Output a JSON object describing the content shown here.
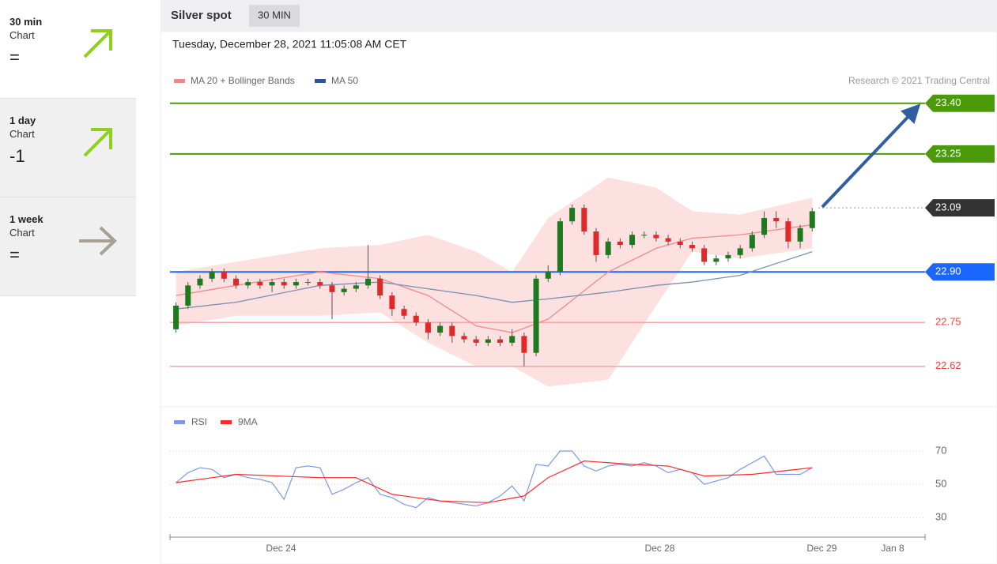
{
  "header": {
    "title": "Silver spot",
    "timeframe": "30 MIN",
    "timestamp": "Tuesday, December 28, 2021 11:05:08 AM CET",
    "credit": "Research © 2021 Trading Central"
  },
  "sidebar": [
    {
      "period": "30 min",
      "label": "Chart",
      "signal": "=",
      "arrow": "up"
    },
    {
      "period": "1 day",
      "label": "Chart",
      "signal": "-1",
      "arrow": "up"
    },
    {
      "period": "1 week",
      "label": "Chart",
      "signal": "=",
      "arrow": "right"
    }
  ],
  "chart_data": [
    {
      "type": "candlestick",
      "up_color": "#1e7a1e",
      "down_color": "#e02a2a",
      "xlim": [
        -0.5,
        62.4
      ],
      "ylim": [
        22.5,
        23.437
      ],
      "x": [
        0,
        1,
        2,
        3,
        4,
        5,
        6,
        7,
        8,
        9,
        10,
        11,
        12,
        13,
        14,
        15,
        16,
        17,
        18,
        19,
        20,
        21,
        22,
        23,
        24,
        25,
        26,
        27,
        28,
        29,
        30,
        31,
        32,
        33,
        34,
        35,
        36,
        37,
        38,
        39,
        40,
        41,
        42,
        43,
        44,
        45,
        46,
        47,
        48,
        49,
        50,
        51,
        52,
        53
      ],
      "open": [
        22.73,
        22.8,
        22.86,
        22.88,
        22.9,
        22.88,
        22.86,
        22.87,
        22.86,
        22.87,
        22.86,
        22.87,
        22.87,
        22.86,
        22.84,
        22.85,
        22.86,
        22.88,
        22.83,
        22.79,
        22.77,
        22.75,
        22.72,
        22.74,
        22.71,
        22.7,
        22.69,
        22.7,
        22.69,
        22.71,
        22.66,
        22.88,
        22.9,
        23.05,
        23.09,
        23.02,
        22.95,
        22.99,
        22.98,
        23.01,
        23.01,
        23.0,
        22.99,
        22.98,
        22.97,
        22.93,
        22.94,
        22.95,
        22.97,
        23.01,
        23.06,
        23.05,
        22.99,
        23.03
      ],
      "high": [
        22.81,
        22.87,
        22.89,
        22.91,
        22.91,
        22.89,
        22.88,
        22.88,
        22.88,
        22.88,
        22.88,
        22.88,
        22.88,
        22.87,
        22.86,
        22.87,
        22.98,
        22.89,
        22.84,
        22.8,
        22.78,
        22.76,
        22.75,
        22.75,
        22.72,
        22.71,
        22.71,
        22.71,
        22.73,
        22.72,
        22.89,
        22.92,
        23.06,
        23.1,
        23.1,
        23.03,
        23.0,
        23.0,
        23.02,
        23.02,
        23.02,
        23.01,
        23.0,
        22.99,
        22.98,
        22.95,
        22.96,
        22.98,
        23.02,
        23.08,
        23.08,
        23.06,
        23.04,
        23.09
      ],
      "low": [
        22.72,
        22.79,
        22.85,
        22.87,
        22.87,
        22.85,
        22.85,
        22.85,
        22.84,
        22.85,
        22.85,
        22.86,
        22.85,
        22.76,
        22.83,
        22.84,
        22.85,
        22.82,
        22.77,
        22.76,
        22.74,
        22.7,
        22.71,
        22.69,
        22.69,
        22.68,
        22.68,
        22.68,
        22.68,
        22.62,
        22.65,
        22.87,
        22.89,
        23.04,
        23.01,
        22.93,
        22.94,
        22.97,
        22.97,
        23.0,
        22.99,
        22.98,
        22.97,
        22.96,
        22.92,
        22.92,
        22.93,
        22.94,
        22.96,
        23.0,
        23.03,
        22.97,
        22.97,
        23.02
      ],
      "close": [
        22.8,
        22.86,
        22.88,
        22.9,
        22.88,
        22.86,
        22.87,
        22.86,
        22.87,
        22.86,
        22.87,
        22.87,
        22.86,
        22.84,
        22.85,
        22.86,
        22.88,
        22.83,
        22.79,
        22.77,
        22.75,
        22.72,
        22.74,
        22.71,
        22.7,
        22.69,
        22.7,
        22.69,
        22.71,
        22.66,
        22.88,
        22.9,
        23.05,
        23.09,
        23.02,
        22.95,
        22.99,
        22.98,
        23.01,
        23.01,
        23.0,
        22.99,
        22.98,
        22.97,
        22.93,
        22.94,
        22.95,
        22.97,
        23.01,
        23.06,
        23.05,
        22.99,
        23.03,
        23.08
      ],
      "series": [
        {
          "name": "MA 20 + Bollinger Bands",
          "color": "#f08a8a",
          "band_color": "#fde0e0",
          "x": [
            0,
            5,
            12,
            17,
            21,
            25,
            28,
            31,
            36,
            40,
            43,
            47,
            53
          ],
          "values": [
            22.83,
            22.86,
            22.9,
            22.88,
            22.83,
            22.74,
            22.72,
            22.76,
            22.9,
            22.97,
            23.0,
            23.01,
            23.04
          ],
          "upper": [
            22.9,
            22.93,
            22.97,
            22.98,
            23.01,
            22.96,
            22.9,
            23.06,
            23.18,
            23.15,
            23.08,
            23.07,
            23.12
          ],
          "lower": [
            22.74,
            22.77,
            22.77,
            22.78,
            22.69,
            22.62,
            22.62,
            22.56,
            22.58,
            22.8,
            22.96,
            22.94,
            22.97
          ]
        },
        {
          "name": "MA 50",
          "color": "#7a8fb0",
          "legend_color": "#2f5597",
          "x": [
            0,
            5,
            12,
            17,
            21,
            25,
            28,
            31,
            36,
            40,
            43,
            47,
            53
          ],
          "values": [
            22.79,
            22.81,
            22.86,
            22.87,
            22.85,
            22.83,
            22.81,
            22.82,
            22.84,
            22.86,
            22.87,
            22.89,
            22.96
          ]
        }
      ],
      "levels": [
        {
          "value": 23.4,
          "label": "23.40",
          "color": "#4a9a0a",
          "line": "solid",
          "tag": true
        },
        {
          "value": 23.25,
          "label": "23.25",
          "color": "#4a9a0a",
          "line": "solid",
          "tag": true
        },
        {
          "value": 23.09,
          "label": "23.09",
          "color": "#333333",
          "line": "dotted",
          "tag": true
        },
        {
          "value": 22.9,
          "label": "22.90",
          "color": "#1a66ff",
          "line": "solid",
          "tag": true
        },
        {
          "value": 22.75,
          "label": "22.75",
          "color": "#f4a6a6",
          "line": "solid",
          "tag": false,
          "text_color": "#ff3b3b"
        },
        {
          "value": 22.62,
          "label": "22.62",
          "color": "#f4a6a6",
          "line": "solid",
          "tag": false,
          "text_color": "#ff3b3b"
        }
      ]
    },
    {
      "type": "line",
      "xlim": [
        -0.5,
        62.4
      ],
      "ylim": [
        23,
        77.6
      ],
      "yticks": [
        30,
        50,
        70
      ],
      "grid": true,
      "xticks": [
        {
          "value": 8.75,
          "label": "Dec 24"
        },
        {
          "value": 40.3,
          "label": "Dec 28"
        },
        {
          "value": 53.8,
          "label": "Dec 29"
        },
        {
          "value": 59.7,
          "label": "Jan 8"
        }
      ],
      "series": [
        {
          "name": "RSI",
          "color": "#7b98e8",
          "x": [
            0,
            1,
            2,
            3,
            4,
            5,
            6,
            7,
            8,
            9,
            10,
            11,
            12,
            13,
            14,
            15,
            16,
            17,
            18,
            19,
            20,
            21,
            22,
            23,
            24,
            25,
            26,
            27,
            28,
            29,
            30,
            31,
            32,
            33,
            34,
            35,
            36,
            37,
            38,
            39,
            40,
            41,
            42,
            43,
            44,
            45,
            46,
            47,
            48,
            49,
            50,
            51,
            52,
            53
          ],
          "values": [
            51,
            57,
            60,
            59,
            54,
            56,
            54,
            53,
            51,
            41,
            60,
            61,
            60,
            44,
            47,
            51,
            54,
            44,
            42,
            38,
            36,
            42,
            40,
            39,
            38,
            37,
            39,
            43,
            49,
            40,
            62,
            61,
            70,
            70,
            61,
            58,
            61,
            62,
            61,
            63,
            61,
            57,
            59,
            57,
            50,
            52,
            54,
            59,
            63,
            67,
            56,
            56,
            56,
            60
          ]
        },
        {
          "name": "9MA",
          "color": "#ff2a2a",
          "x": [
            0,
            5,
            12,
            15,
            18,
            22,
            26,
            29,
            31,
            34,
            38,
            41,
            44,
            48,
            53
          ],
          "values": [
            51,
            56,
            54,
            54,
            44,
            40,
            39,
            43,
            54,
            64,
            62,
            61,
            55,
            56,
            60
          ]
        }
      ]
    }
  ]
}
